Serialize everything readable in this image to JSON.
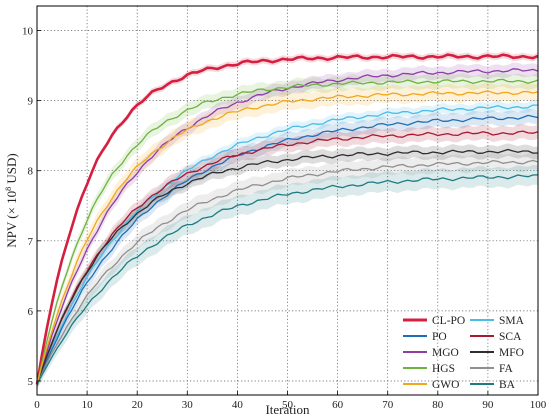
{
  "chart_data": {
    "type": "line",
    "title": "",
    "xlabel": "Iteration",
    "ylabel_parts": {
      "before": "NPV (× 10",
      "sup": "8",
      "after": " USD)"
    },
    "xlim": [
      0,
      100
    ],
    "ylim": [
      4.8,
      10.35
    ],
    "xticks": [
      0,
      10,
      20,
      30,
      40,
      50,
      60,
      70,
      80,
      90,
      100
    ],
    "yticks": [
      5,
      6,
      7,
      8,
      9,
      10
    ],
    "grid": true,
    "grid_style": "dotted",
    "legend_position": "bottom-right",
    "legend_columns": 2,
    "series": [
      {
        "name": "CL-PO",
        "color": "#d51f3f",
        "width": 2.6,
        "band": 0.05,
        "start": 4.95,
        "final": 9.63,
        "k": 0.095,
        "p": 1.0
      },
      {
        "name": "SMA",
        "color": "#4cbbe6",
        "width": 1.3,
        "band": 0.07,
        "start": 4.95,
        "final": 8.95,
        "k": 0.048,
        "p": 1.0
      },
      {
        "name": "PO",
        "color": "#1f6fb7",
        "width": 1.3,
        "band": 0.1,
        "start": 4.95,
        "final": 8.8,
        "k": 0.047,
        "p": 1.0
      },
      {
        "name": "SCA",
        "color": "#a8192f",
        "width": 1.3,
        "band": 0.1,
        "start": 4.95,
        "final": 8.55,
        "k": 0.06,
        "p": 1.0
      },
      {
        "name": "MGO",
        "color": "#8e3da6",
        "width": 1.3,
        "band": 0.09,
        "start": 4.95,
        "final": 9.45,
        "k": 0.056,
        "p": 1.0
      },
      {
        "name": "MFO",
        "color": "#2e2e2e",
        "width": 1.3,
        "band": 0.09,
        "start": 4.95,
        "final": 8.28,
        "k": 0.066,
        "p": 1.0
      },
      {
        "name": "HGS",
        "color": "#6eb33f",
        "width": 1.3,
        "band": 0.1,
        "start": 4.95,
        "final": 9.28,
        "k": 0.078,
        "p": 1.0
      },
      {
        "name": "FA",
        "color": "#8f8f8f",
        "width": 1.3,
        "band": 0.12,
        "start": 4.95,
        "final": 8.15,
        "k": 0.05,
        "p": 1.0
      },
      {
        "name": "GWO",
        "color": "#f2a71b",
        "width": 1.3,
        "band": 0.12,
        "start": 4.95,
        "final": 9.12,
        "k": 0.068,
        "p": 1.0
      },
      {
        "name": "BA",
        "color": "#1f7a83",
        "width": 1.3,
        "band": 0.14,
        "start": 4.95,
        "final": 7.95,
        "k": 0.047,
        "p": 1.0
      }
    ]
  }
}
